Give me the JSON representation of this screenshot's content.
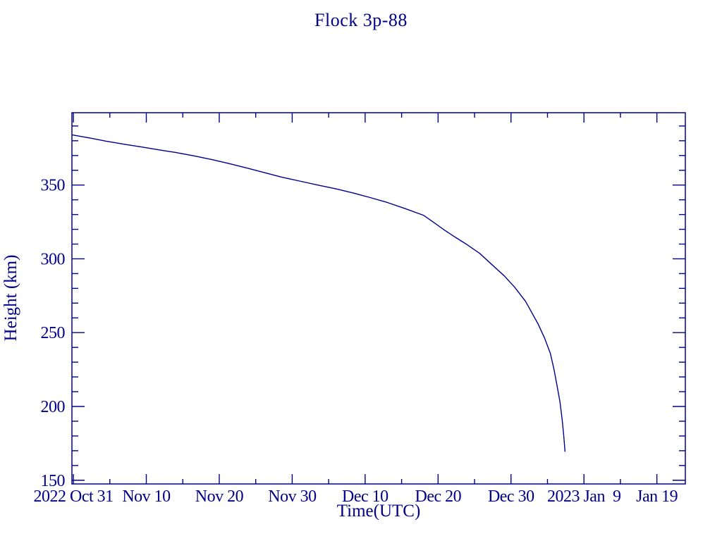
{
  "colors": {
    "accent": "#00008b",
    "background": "#ffffff"
  },
  "chart_data": {
    "type": "line",
    "title": "Flock 3p-88",
    "xlabel": "Time(UTC)",
    "ylabel": "Height (km)",
    "line_color": "#00008b",
    "frame_color": "#00008b",
    "grid": false,
    "legend": false,
    "x_axis": {
      "unit": "days since 2022 Oct 31 00:00 UTC",
      "range": [
        -0.2,
        83.9
      ],
      "major_ticks": [
        {
          "day": 0,
          "label": "2022 Oct 31"
        },
        {
          "day": 10,
          "label": "Nov 10"
        },
        {
          "day": 20,
          "label": "Nov 20"
        },
        {
          "day": 30,
          "label": "Nov 30"
        },
        {
          "day": 40,
          "label": "Dec 10"
        },
        {
          "day": 50,
          "label": "Dec 20"
        },
        {
          "day": 60,
          "label": "Dec 30"
        },
        {
          "day": 70,
          "label": "2023 Jan  9"
        },
        {
          "day": 80,
          "label": "Jan 19"
        }
      ],
      "minor_tick_days": [
        5,
        15,
        25,
        35,
        45,
        55,
        65,
        75
      ]
    },
    "y_axis": {
      "range": [
        147.5,
        399.0
      ],
      "major_ticks": [
        150,
        200,
        250,
        300,
        350
      ],
      "major_tick_labels": [
        "150",
        "200",
        "250",
        "300",
        "350"
      ],
      "minor_ticks": [
        160,
        170,
        180,
        190,
        210,
        220,
        230,
        240,
        260,
        270,
        280,
        290,
        310,
        320,
        330,
        340,
        360,
        370,
        380,
        390
      ]
    },
    "series": [
      {
        "name": "Flock 3p-88 orbital height",
        "x_days": [
          -0.2,
          2.0,
          4.5,
          7.0,
          9.3,
          12.0,
          14.1,
          16.5,
          19.0,
          21.4,
          23.8,
          26.2,
          28.6,
          31.0,
          33.5,
          36.0,
          38.3,
          40.7,
          43.1,
          45.5,
          48.0,
          49.4,
          50.9,
          52.3,
          53.8,
          55.7,
          57.6,
          59.1,
          60.5,
          62.0,
          62.9,
          63.7,
          64.6,
          65.4,
          65.9,
          66.3,
          66.7,
          67.0,
          67.2,
          67.3,
          67.4
        ],
        "height_km": [
          384.0,
          382.1,
          379.7,
          377.6,
          375.8,
          373.6,
          372.0,
          369.8,
          367.2,
          364.5,
          361.5,
          358.4,
          355.3,
          352.7,
          350.0,
          347.4,
          344.7,
          341.5,
          338.1,
          334.0,
          329.5,
          324.7,
          319.4,
          314.8,
          310.2,
          303.7,
          295.1,
          288.4,
          280.8,
          271.2,
          263.1,
          256.0,
          246.4,
          235.9,
          224.9,
          214.4,
          203.5,
          191.5,
          182.0,
          175.8,
          169.6
        ]
      }
    ]
  }
}
